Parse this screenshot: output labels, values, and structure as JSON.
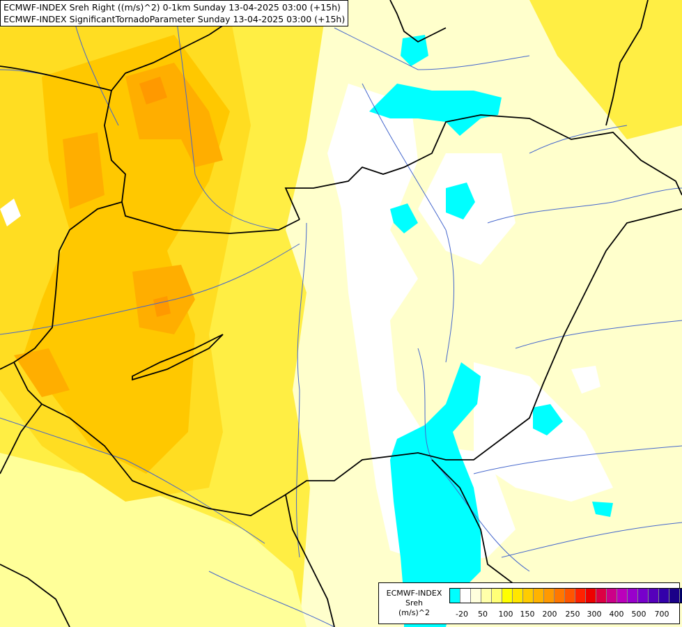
{
  "titles": {
    "line1": "ECMWF-INDEX Sreh Right ((m/s)^2) 0-1km Sunday 13-04-2025 03:00 (+15h)",
    "line2": "ECMWF-INDEX SignificantTornadoParameter Sunday 13-04-2025 03:00 (+15h)"
  },
  "legend": {
    "line1": "ECMWF-INDEX",
    "line2": "Sreh",
    "line3": "(m/s)^2",
    "colors": [
      "#00ffff",
      "#ffffff",
      "#ffffdd",
      "#ffffaa",
      "#ffff77",
      "#ffff00",
      "#ffe600",
      "#ffcc00",
      "#ffb300",
      "#ff9900",
      "#ff7700",
      "#ff5500",
      "#ff2200",
      "#ee0000",
      "#dd0044",
      "#cc0088",
      "#bb00bb",
      "#9900cc",
      "#7700cc",
      "#5500bb",
      "#3300aa",
      "#1a0088",
      "#000066"
    ],
    "ticks": [
      "-20",
      "50",
      "100",
      "150",
      "200",
      "250",
      "300",
      "400",
      "500",
      "700"
    ]
  },
  "colors": {
    "background": "#ffffcc",
    "border": "#000000",
    "river": "#3355cc",
    "low_value": "#00ffff"
  }
}
